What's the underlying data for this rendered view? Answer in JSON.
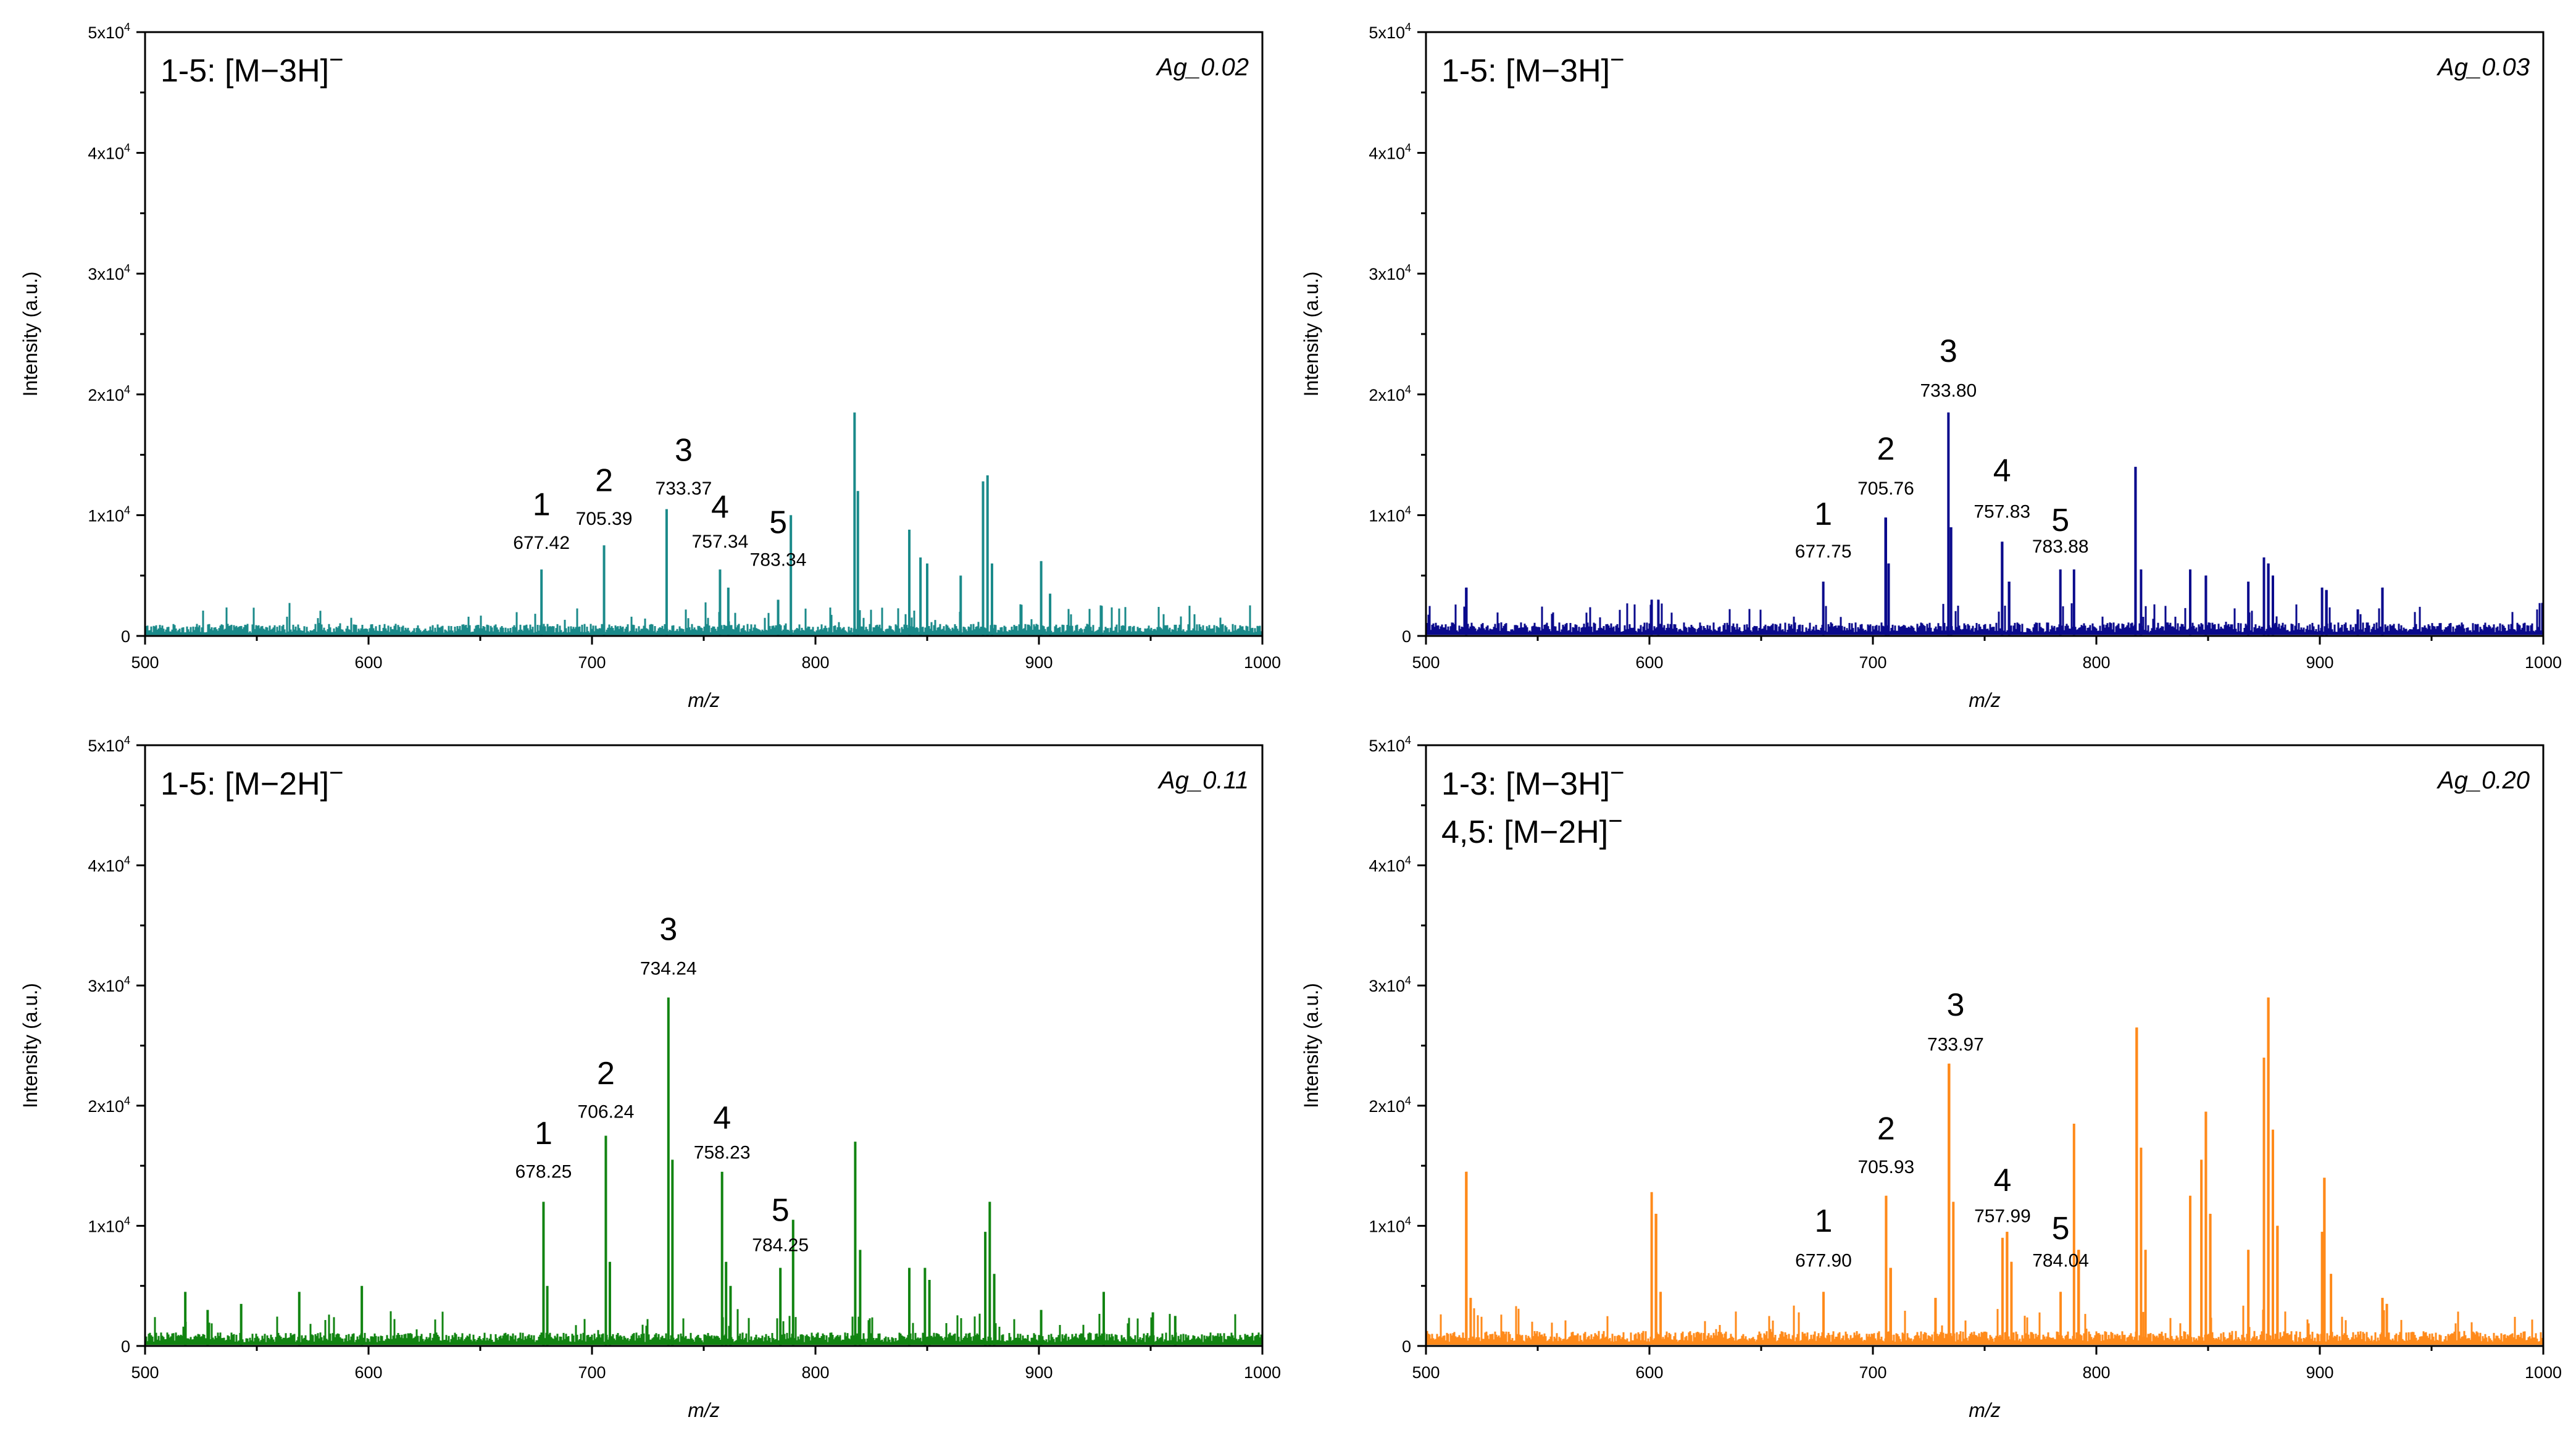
{
  "figure_title": "",
  "colors": {
    "Ag_0.02": "#1a8a8a",
    "Ag_0.03": "#0a0a8c",
    "Ag_0.11": "#118411",
    "Ag_0.20": "#ff8a1a"
  },
  "chart_data": [
    {
      "type": "line",
      "sample": "Ag_0.02",
      "ion_prefix": "1-5: [M−3H]",
      "ion_sup": "−",
      "ion_line2_prefix": "",
      "ion_line2_sup": "",
      "xlabel": "m/z",
      "ylabel": "Intensity (a.u.)",
      "xlim": [
        500,
        1000
      ],
      "ylim": [
        0,
        50000
      ],
      "xticks": [
        "500",
        "600",
        "700",
        "800",
        "900",
        "1000"
      ],
      "ytick_labels": [
        "0",
        "1x10",
        "2x10",
        "3x10",
        "4x10",
        "5x10"
      ],
      "ytick_exp": "4",
      "baseline": 800,
      "peaks": [
        {
          "mz": 677.4,
          "i": 5500
        },
        {
          "mz": 705.4,
          "i": 7500
        },
        {
          "mz": 733.4,
          "i": 10500
        },
        {
          "mz": 757.3,
          "i": 5500
        },
        {
          "mz": 761,
          "i": 4000
        },
        {
          "mz": 783.3,
          "i": 3000
        },
        {
          "mz": 789,
          "i": 10000
        },
        {
          "mz": 817.5,
          "i": 18500
        },
        {
          "mz": 819,
          "i": 12000
        },
        {
          "mz": 842,
          "i": 8800
        },
        {
          "mz": 847,
          "i": 6500
        },
        {
          "mz": 850,
          "i": 6000
        },
        {
          "mz": 865,
          "i": 5000
        },
        {
          "mz": 875,
          "i": 12800
        },
        {
          "mz": 877,
          "i": 13300
        },
        {
          "mz": 879,
          "i": 6000
        },
        {
          "mz": 901,
          "i": 6200
        },
        {
          "mz": 905,
          "i": 3500
        },
        {
          "mz": 928,
          "i": 2500
        }
      ],
      "annotations": [
        {
          "n": "1",
          "mz_label": "677.42",
          "x": 677.4,
          "num_y": 10000,
          "mz_y": 7200
        },
        {
          "n": "2",
          "mz_label": "705.39",
          "x": 705.4,
          "num_y": 12000,
          "mz_y": 9200
        },
        {
          "n": "3",
          "mz_label": "733.37",
          "x": 741,
          "num_y": 14500,
          "mz_y": 11700
        },
        {
          "n": "4",
          "mz_label": "757.34",
          "x": 757.3,
          "num_y": 9800,
          "mz_y": 7300
        },
        {
          "n": "5",
          "mz_label": "783.34",
          "x": 783.3,
          "num_y": 8500,
          "mz_y": 5800
        }
      ]
    },
    {
      "type": "line",
      "sample": "Ag_0.03",
      "ion_prefix": "1-5: [M−3H]",
      "ion_sup": "−",
      "ion_line2_prefix": "",
      "ion_line2_sup": "",
      "xlabel": "m/z",
      "ylabel": "Intensity (a.u.)",
      "xlim": [
        500,
        1000
      ],
      "ylim": [
        0,
        50000
      ],
      "xticks": [
        "500",
        "600",
        "700",
        "800",
        "900",
        "1000"
      ],
      "ytick_labels": [
        "0",
        "1x10",
        "2x10",
        "3x10",
        "4x10",
        "5x10"
      ],
      "ytick_exp": "4",
      "baseline": 900,
      "peaks": [
        {
          "mz": 518,
          "i": 4000
        },
        {
          "mz": 601,
          "i": 3000
        },
        {
          "mz": 604,
          "i": 3000
        },
        {
          "mz": 677.8,
          "i": 4500
        },
        {
          "mz": 705.8,
          "i": 9800
        },
        {
          "mz": 707,
          "i": 6000
        },
        {
          "mz": 733.8,
          "i": 18500
        },
        {
          "mz": 735,
          "i": 9000
        },
        {
          "mz": 757.8,
          "i": 7800
        },
        {
          "mz": 761,
          "i": 4500
        },
        {
          "mz": 783.9,
          "i": 5500
        },
        {
          "mz": 790,
          "i": 5500
        },
        {
          "mz": 817.5,
          "i": 14000
        },
        {
          "mz": 820,
          "i": 5500
        },
        {
          "mz": 842,
          "i": 5500
        },
        {
          "mz": 849,
          "i": 5000
        },
        {
          "mz": 868,
          "i": 4500
        },
        {
          "mz": 875,
          "i": 6500
        },
        {
          "mz": 877,
          "i": 6000
        },
        {
          "mz": 879,
          "i": 5000
        },
        {
          "mz": 901,
          "i": 4000
        },
        {
          "mz": 903,
          "i": 3800
        },
        {
          "mz": 917,
          "i": 2200
        },
        {
          "mz": 928,
          "i": 4000
        }
      ],
      "annotations": [
        {
          "n": "1",
          "mz_label": "677.75",
          "x": 677.8,
          "num_y": 9200,
          "mz_y": 6500
        },
        {
          "n": "2",
          "mz_label": "705.76",
          "x": 705.8,
          "num_y": 14600,
          "mz_y": 11700
        },
        {
          "n": "3",
          "mz_label": "733.80",
          "x": 733.8,
          "num_y": 22700,
          "mz_y": 19800
        },
        {
          "n": "4",
          "mz_label": "757.83",
          "x": 757.8,
          "num_y": 12800,
          "mz_y": 9800
        },
        {
          "n": "5",
          "mz_label": "783.88",
          "x": 783.9,
          "num_y": 8700,
          "mz_y": 6900
        }
      ]
    },
    {
      "type": "line",
      "sample": "Ag_0.11",
      "ion_prefix": "1-5: [M−2H]",
      "ion_sup": "−",
      "ion_line2_prefix": "",
      "ion_line2_sup": "",
      "xlabel": "m/z",
      "ylabel": "Intensity (a.u.)",
      "xlim": [
        500,
        1000
      ],
      "ylim": [
        0,
        50000
      ],
      "xticks": [
        "500",
        "600",
        "700",
        "800",
        "900",
        "1000"
      ],
      "ytick_labels": [
        "0",
        "1x10",
        "2x10",
        "3x10",
        "4x10",
        "5x10"
      ],
      "ytick_exp": "4",
      "baseline": 900,
      "peaks": [
        {
          "mz": 518,
          "i": 4500
        },
        {
          "mz": 528,
          "i": 3000
        },
        {
          "mz": 543,
          "i": 3500
        },
        {
          "mz": 569,
          "i": 4500
        },
        {
          "mz": 597,
          "i": 5000
        },
        {
          "mz": 678.3,
          "i": 12000
        },
        {
          "mz": 680,
          "i": 5000
        },
        {
          "mz": 706.2,
          "i": 17500
        },
        {
          "mz": 708,
          "i": 7000
        },
        {
          "mz": 734.2,
          "i": 29000
        },
        {
          "mz": 736,
          "i": 15500
        },
        {
          "mz": 758.2,
          "i": 14500
        },
        {
          "mz": 760,
          "i": 7000
        },
        {
          "mz": 762,
          "i": 5000
        },
        {
          "mz": 784.3,
          "i": 6500
        },
        {
          "mz": 790,
          "i": 10500
        },
        {
          "mz": 817.8,
          "i": 17000
        },
        {
          "mz": 820,
          "i": 8000
        },
        {
          "mz": 842,
          "i": 6500
        },
        {
          "mz": 849,
          "i": 6500
        },
        {
          "mz": 851,
          "i": 5500
        },
        {
          "mz": 876,
          "i": 9500
        },
        {
          "mz": 878,
          "i": 12000
        },
        {
          "mz": 880,
          "i": 6000
        },
        {
          "mz": 901,
          "i": 3000
        },
        {
          "mz": 929,
          "i": 4500
        },
        {
          "mz": 951,
          "i": 2800
        },
        {
          "mz": 961,
          "i": 2500
        }
      ],
      "annotations": [
        {
          "n": "1",
          "mz_label": "678.25",
          "x": 678.3,
          "num_y": 16800,
          "mz_y": 14000
        },
        {
          "n": "2",
          "mz_label": "706.24",
          "x": 706.2,
          "num_y": 21800,
          "mz_y": 19000
        },
        {
          "n": "3",
          "mz_label": "734.24",
          "x": 734.2,
          "num_y": 33800,
          "mz_y": 30900
        },
        {
          "n": "4",
          "mz_label": "758.23",
          "x": 758.2,
          "num_y": 18100,
          "mz_y": 15600
        },
        {
          "n": "5",
          "mz_label": "784.25",
          "x": 784.3,
          "num_y": 10400,
          "mz_y": 7900
        }
      ]
    },
    {
      "type": "line",
      "sample": "Ag_0.20",
      "ion_prefix": "1-3: [M−3H]",
      "ion_sup": "−",
      "ion_line2_prefix": "4,5: [M−2H]",
      "ion_line2_sup": "−",
      "xlabel": "m/z",
      "ylabel": "Intensity (a.u.)",
      "xlim": [
        500,
        1000
      ],
      "ylim": [
        0,
        50000
      ],
      "xticks": [
        "500",
        "600",
        "700",
        "800",
        "900",
        "1000"
      ],
      "ytick_labels": [
        "0",
        "1x10",
        "2x10",
        "3x10",
        "4x10",
        "5x10"
      ],
      "ytick_exp": "4",
      "baseline": 1000,
      "peaks": [
        {
          "mz": 518,
          "i": 14500
        },
        {
          "mz": 520,
          "i": 4000
        },
        {
          "mz": 601,
          "i": 12800
        },
        {
          "mz": 603,
          "i": 11000
        },
        {
          "mz": 605,
          "i": 4500
        },
        {
          "mz": 677.9,
          "i": 4500
        },
        {
          "mz": 705.9,
          "i": 12500
        },
        {
          "mz": 708,
          "i": 6500
        },
        {
          "mz": 728,
          "i": 4000
        },
        {
          "mz": 734,
          "i": 23500
        },
        {
          "mz": 736,
          "i": 12000
        },
        {
          "mz": 758,
          "i": 9000
        },
        {
          "mz": 760,
          "i": 9500
        },
        {
          "mz": 762,
          "i": 7000
        },
        {
          "mz": 784,
          "i": 4500
        },
        {
          "mz": 790,
          "i": 18500
        },
        {
          "mz": 792,
          "i": 8000
        },
        {
          "mz": 818,
          "i": 26500
        },
        {
          "mz": 820,
          "i": 16500
        },
        {
          "mz": 822,
          "i": 8000
        },
        {
          "mz": 842,
          "i": 12500
        },
        {
          "mz": 847,
          "i": 15500
        },
        {
          "mz": 849,
          "i": 19500
        },
        {
          "mz": 851,
          "i": 11000
        },
        {
          "mz": 868,
          "i": 8000
        },
        {
          "mz": 875,
          "i": 24000
        },
        {
          "mz": 877,
          "i": 29000
        },
        {
          "mz": 879,
          "i": 18000
        },
        {
          "mz": 881,
          "i": 10000
        },
        {
          "mz": 901,
          "i": 9500
        },
        {
          "mz": 902,
          "i": 14000
        },
        {
          "mz": 905,
          "i": 6000
        },
        {
          "mz": 928,
          "i": 4000
        },
        {
          "mz": 930,
          "i": 3500
        }
      ],
      "annotations": [
        {
          "n": "1",
          "mz_label": "677.90",
          "x": 677.9,
          "num_y": 9500,
          "mz_y": 6600
        },
        {
          "n": "2",
          "mz_label": "705.93",
          "x": 705.9,
          "num_y": 17200,
          "mz_y": 14400
        },
        {
          "n": "3",
          "mz_label": "733.97",
          "x": 737,
          "num_y": 27500,
          "mz_y": 24600
        },
        {
          "n": "4",
          "mz_label": "757.99",
          "x": 758,
          "num_y": 12900,
          "mz_y": 10300
        },
        {
          "n": "5",
          "mz_label": "784.04",
          "x": 784,
          "num_y": 8900,
          "mz_y": 6600
        }
      ]
    }
  ]
}
